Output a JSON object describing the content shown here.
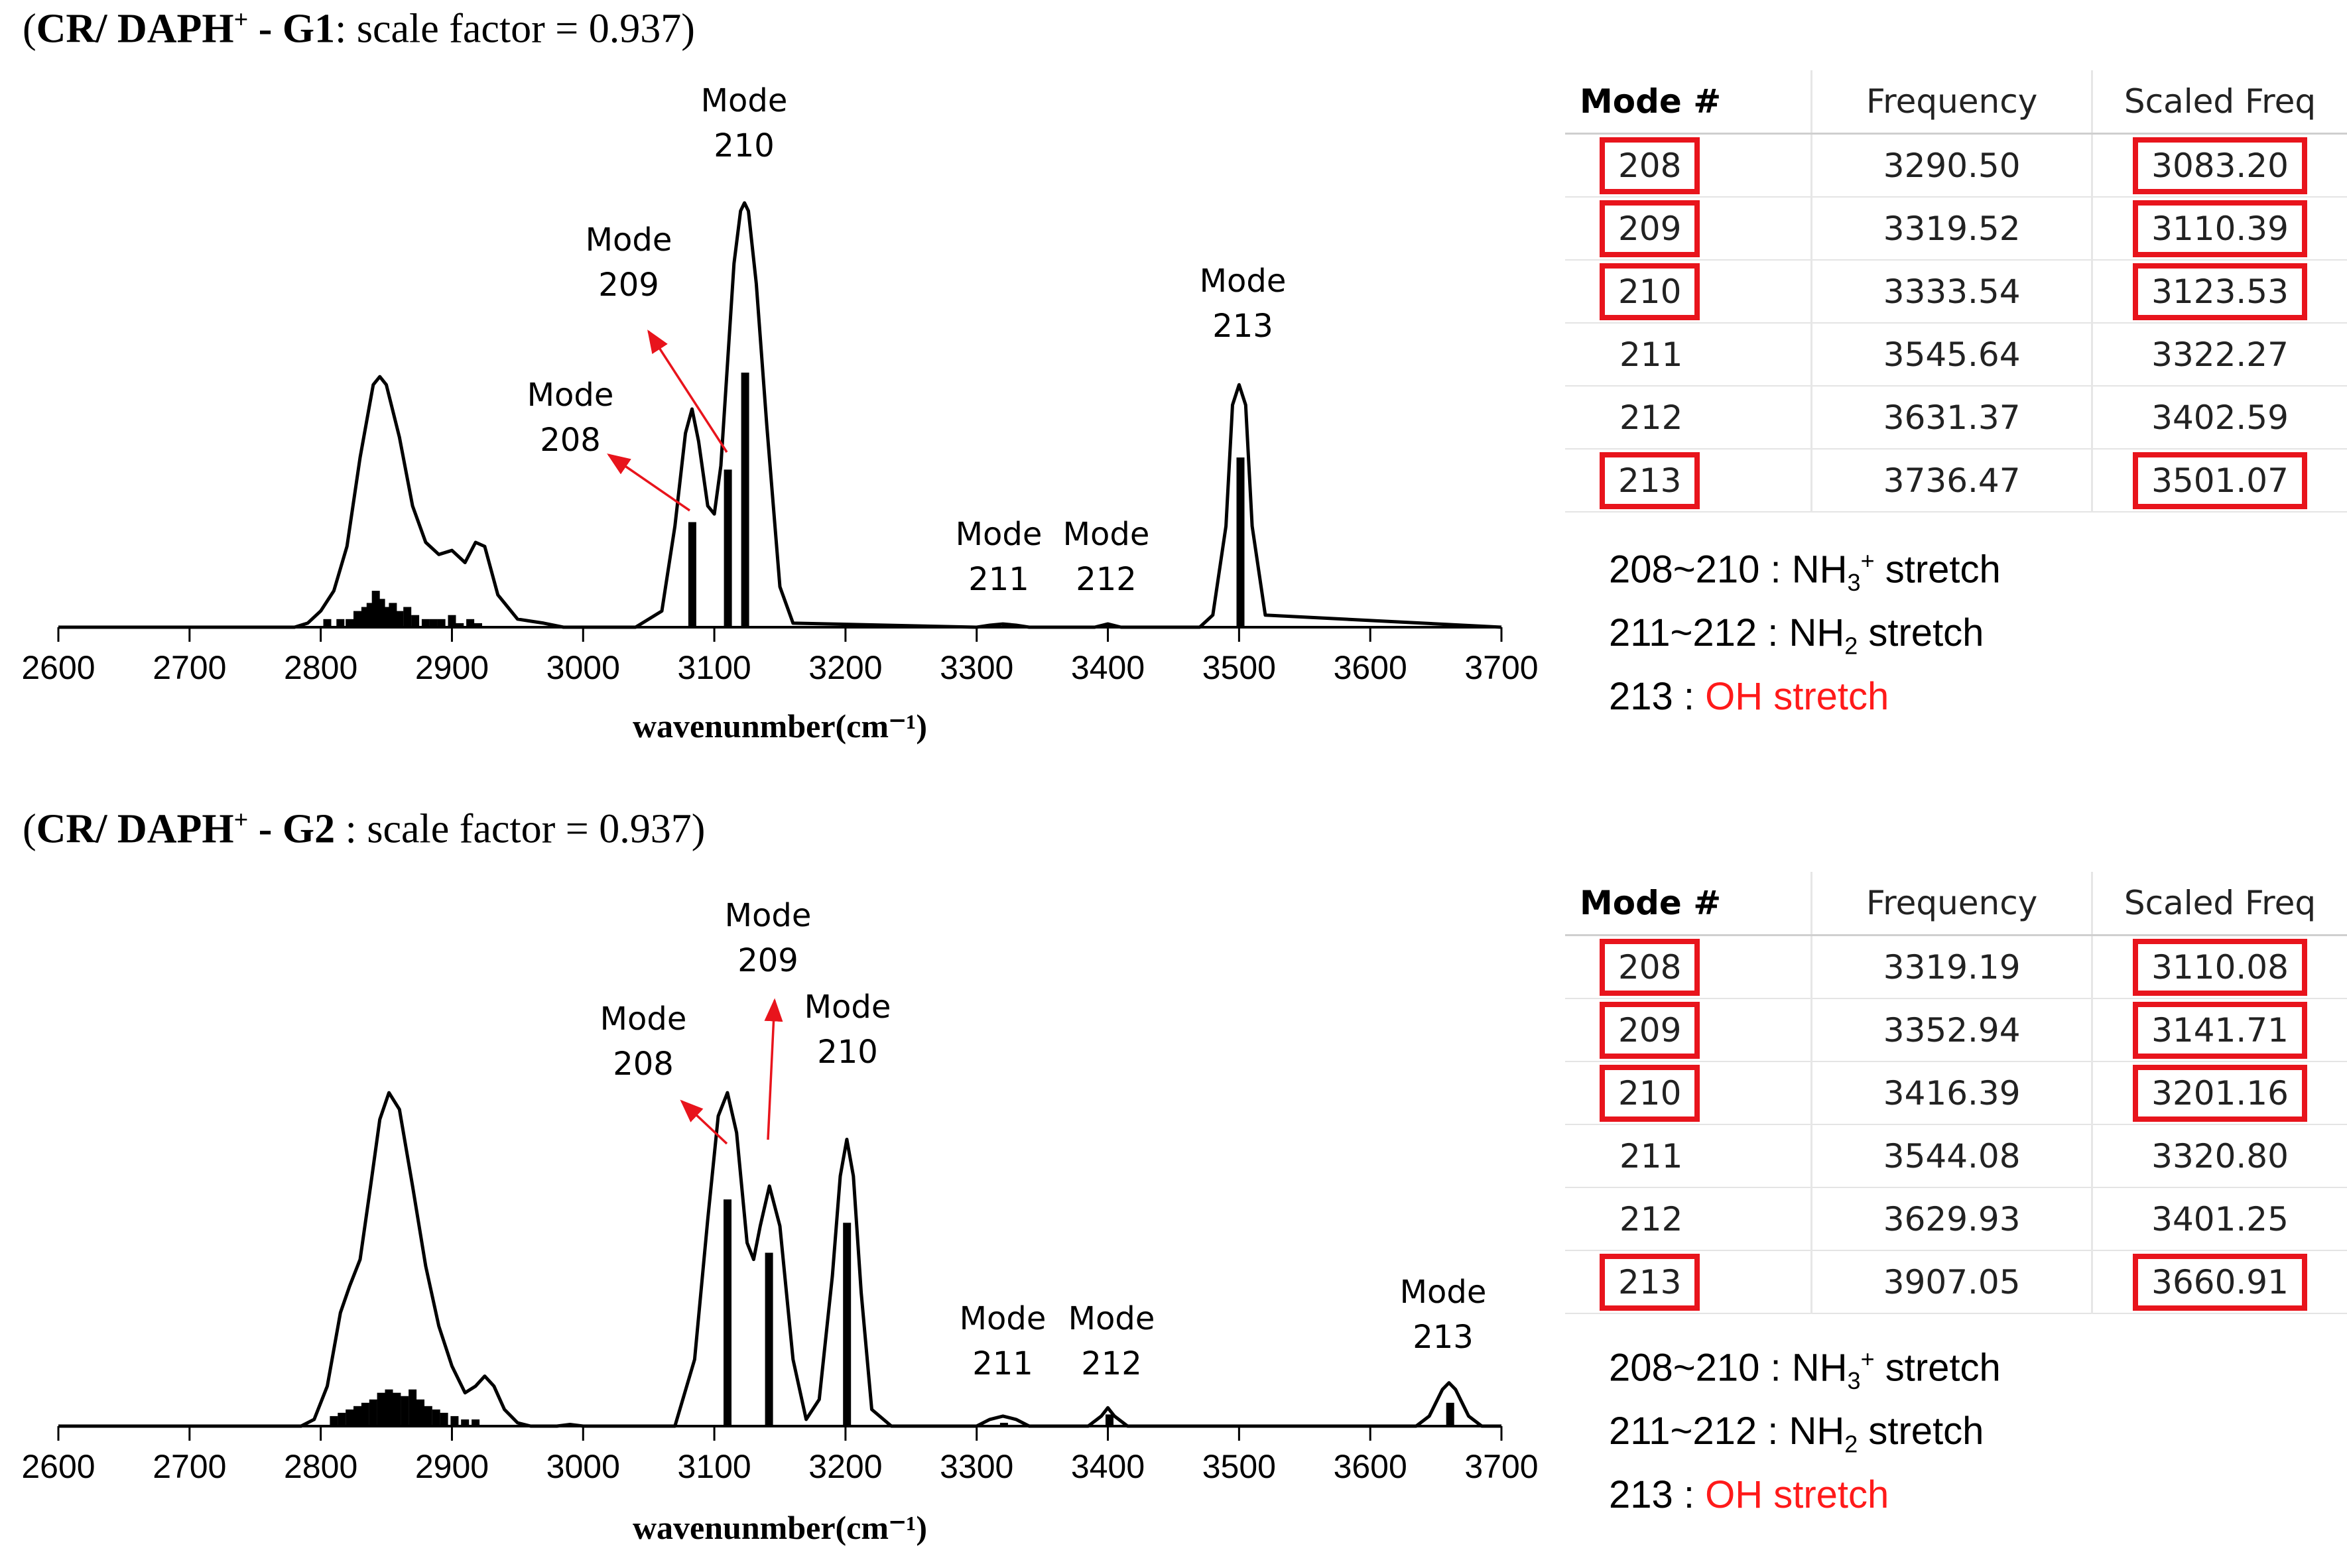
{
  "panels": [
    {
      "id": "G1",
      "title_prefix": "(",
      "title_bold": "CR/ DAPH",
      "title_sup": "+",
      "title_bold2": " - G1",
      "title_rest": ": scale factor = 0.937)",
      "chart_data": {
        "type": "line",
        "xlabel": "wavenunmber(cm⁻¹)",
        "xlim": [
          2600,
          3700
        ],
        "xticks": [
          2600,
          2700,
          2800,
          2900,
          3000,
          3100,
          3200,
          3300,
          3400,
          3500,
          3600,
          3700
        ],
        "ylim": [
          0,
          1.05
        ],
        "envelope": {
          "x": [
            2600,
            2780,
            2790,
            2800,
            2810,
            2820,
            2830,
            2840,
            2845,
            2850,
            2860,
            2870,
            2880,
            2890,
            2900,
            2910,
            2918,
            2925,
            2935,
            2950,
            2960,
            2970,
            2985,
            3040,
            3060,
            3070,
            3078,
            3083,
            3088,
            3095,
            3100,
            3105,
            3110,
            3115,
            3120,
            3123,
            3126,
            3132,
            3140,
            3150,
            3160,
            3300,
            3310,
            3320,
            3330,
            3340,
            3390,
            3400,
            3410,
            3470,
            3480,
            3490,
            3495,
            3500,
            3505,
            3510,
            3520,
            3700
          ],
          "y": [
            0,
            0,
            0.01,
            0.04,
            0.09,
            0.2,
            0.42,
            0.6,
            0.62,
            0.6,
            0.47,
            0.3,
            0.21,
            0.18,
            0.19,
            0.16,
            0.21,
            0.2,
            0.08,
            0.02,
            0.015,
            0.01,
            0,
            0,
            0.04,
            0.25,
            0.48,
            0.54,
            0.46,
            0.3,
            0.28,
            0.4,
            0.65,
            0.9,
            1.03,
            1.05,
            1.03,
            0.85,
            0.5,
            0.1,
            0.01,
            0,
            0.005,
            0.008,
            0.005,
            0,
            0,
            0.008,
            0,
            0,
            0.03,
            0.25,
            0.55,
            0.6,
            0.55,
            0.25,
            0.03,
            0
          ]
        },
        "sticks": {
          "x": [
            2805,
            2815,
            2822,
            2828,
            2834,
            2838,
            2842,
            2846,
            2850,
            2855,
            2860,
            2866,
            2872,
            2880,
            2886,
            2892,
            2900,
            2906,
            2914,
            2920,
            3083.2,
            3110.39,
            3123.53,
            3322.27,
            3402.59,
            3501.07
          ],
          "y": [
            0.02,
            0.02,
            0.02,
            0.04,
            0.05,
            0.06,
            0.09,
            0.07,
            0.05,
            0.06,
            0.04,
            0.05,
            0.03,
            0.02,
            0.02,
            0.02,
            0.03,
            0.01,
            0.02,
            0.01,
            0.26,
            0.39,
            0.63,
            0.005,
            0.005,
            0.42
          ]
        },
        "annotations": [
          {
            "lines": [
              "Mode",
              "209"
            ],
            "mode": 209
          },
          {
            "lines": [
              "Mode",
              "208"
            ],
            "mode": 208
          },
          {
            "lines": [
              "Mode",
              "210"
            ],
            "mode": 210
          },
          {
            "lines": [
              "Mode",
              "211"
            ],
            "mode": 211
          },
          {
            "lines": [
              "Mode",
              "212"
            ],
            "mode": 212
          },
          {
            "lines": [
              "Mode",
              "213"
            ],
            "mode": 213
          }
        ]
      },
      "table": {
        "headers": [
          "Mode #",
          "Frequency",
          "Scaled Freq"
        ],
        "rows": [
          {
            "mode": "208",
            "frequency": "3290.50",
            "scaled": "3083.20",
            "highlight": true
          },
          {
            "mode": "209",
            "frequency": "3319.52",
            "scaled": "3110.39",
            "highlight": true
          },
          {
            "mode": "210",
            "frequency": "3333.54",
            "scaled": "3123.53",
            "highlight": true
          },
          {
            "mode": "211",
            "frequency": "3545.64",
            "scaled": "3322.27",
            "highlight": false
          },
          {
            "mode": "212",
            "frequency": "3631.37",
            "scaled": "3402.59",
            "highlight": false
          },
          {
            "mode": "213",
            "frequency": "3736.47",
            "scaled": "3501.07",
            "highlight": true
          }
        ]
      },
      "legend": {
        "l1_pre": "208~210 : NH",
        "l1_sub": "3",
        "l1_sup": "+",
        "l1_post": " stretch",
        "l2_pre": "211~212 : NH",
        "l2_sub": "2",
        "l2_post": " stretch",
        "l3_pre": "213 : ",
        "l3_red": "OH stretch"
      }
    },
    {
      "id": "G2",
      "title_prefix": "(",
      "title_bold": "CR/ DAPH",
      "title_sup": "+",
      "title_bold2": " - G2",
      "title_rest": " : scale factor = 0.937)",
      "chart_data": {
        "type": "line",
        "xlabel": "wavenunmber(cm⁻¹)",
        "xlim": [
          2600,
          3700
        ],
        "xticks": [
          2600,
          2700,
          2800,
          2900,
          3000,
          3100,
          3200,
          3300,
          3400,
          3500,
          3600,
          3700
        ],
        "ylim": [
          0,
          1.05
        ],
        "envelope": {
          "x": [
            2600,
            2785,
            2795,
            2805,
            2815,
            2822,
            2830,
            2838,
            2845,
            2852,
            2860,
            2870,
            2880,
            2890,
            2900,
            2910,
            2918,
            2925,
            2932,
            2940,
            2950,
            2960,
            2980,
            2990,
            3000,
            3070,
            3085,
            3095,
            3103,
            3110,
            3117,
            3125,
            3130,
            3135,
            3142,
            3150,
            3160,
            3170,
            3180,
            3190,
            3196,
            3201,
            3206,
            3212,
            3220,
            3235,
            3300,
            3310,
            3320,
            3330,
            3340,
            3385,
            3395,
            3400,
            3405,
            3415,
            3635,
            3645,
            3655,
            3660,
            3665,
            3675,
            3685,
            3700
          ],
          "y": [
            0,
            0,
            0.02,
            0.12,
            0.34,
            0.42,
            0.5,
            0.72,
            0.92,
            1.0,
            0.95,
            0.72,
            0.48,
            0.3,
            0.18,
            0.1,
            0.12,
            0.15,
            0.12,
            0.05,
            0.01,
            0,
            0,
            0.005,
            0,
            0,
            0.2,
            0.62,
            0.93,
            1.0,
            0.88,
            0.55,
            0.5,
            0.6,
            0.72,
            0.6,
            0.2,
            0.02,
            0.08,
            0.45,
            0.75,
            0.86,
            0.75,
            0.4,
            0.05,
            0,
            0,
            0.02,
            0.03,
            0.02,
            0,
            0,
            0.03,
            0.055,
            0.03,
            0,
            0,
            0.03,
            0.11,
            0.13,
            0.11,
            0.03,
            0,
            0
          ]
        },
        "sticks": {
          "x": [
            2810,
            2816,
            2822,
            2828,
            2834,
            2840,
            2846,
            2852,
            2858,
            2864,
            2870,
            2876,
            2882,
            2888,
            2894,
            2902,
            2910,
            2918,
            3110.08,
            3141.71,
            3201.16,
            3320.8,
            3401.25,
            3660.91
          ],
          "y": [
            0.03,
            0.04,
            0.05,
            0.06,
            0.07,
            0.08,
            0.1,
            0.11,
            0.1,
            0.09,
            0.11,
            0.08,
            0.06,
            0.05,
            0.04,
            0.03,
            0.02,
            0.02,
            0.68,
            0.52,
            0.61,
            0.01,
            0.035,
            0.07
          ]
        },
        "annotations": [
          {
            "lines": [
              "Mode",
              "208"
            ],
            "mode": 208
          },
          {
            "lines": [
              "Mode",
              "209"
            ],
            "mode": 209
          },
          {
            "lines": [
              "Mode",
              "210"
            ],
            "mode": 210
          },
          {
            "lines": [
              "Mode",
              "211"
            ],
            "mode": 211
          },
          {
            "lines": [
              "Mode",
              "212"
            ],
            "mode": 212
          },
          {
            "lines": [
              "Mode",
              "213"
            ],
            "mode": 213
          }
        ]
      },
      "table": {
        "headers": [
          "Mode #",
          "Frequency",
          "Scaled Freq"
        ],
        "rows": [
          {
            "mode": "208",
            "frequency": "3319.19",
            "scaled": "3110.08",
            "highlight": true
          },
          {
            "mode": "209",
            "frequency": "3352.94",
            "scaled": "3141.71",
            "highlight": true
          },
          {
            "mode": "210",
            "frequency": "3416.39",
            "scaled": "3201.16",
            "highlight": true
          },
          {
            "mode": "211",
            "frequency": "3544.08",
            "scaled": "3320.80",
            "highlight": false
          },
          {
            "mode": "212",
            "frequency": "3629.93",
            "scaled": "3401.25",
            "highlight": false
          },
          {
            "mode": "213",
            "frequency": "3907.05",
            "scaled": "3660.91",
            "highlight": true
          }
        ]
      },
      "legend": {
        "l1_pre": "208~210 : NH",
        "l1_sub": "3",
        "l1_sup": "+",
        "l1_post": " stretch",
        "l2_pre": "211~212 : NH",
        "l2_sub": "2",
        "l2_post": " stretch",
        "l3_pre": "213 : ",
        "l3_red": "OH stretch"
      }
    }
  ],
  "colors": {
    "highlight": "#e8141c",
    "arrow": "#e8141c",
    "red_text": "#ff1a1a",
    "line": "#000000"
  }
}
